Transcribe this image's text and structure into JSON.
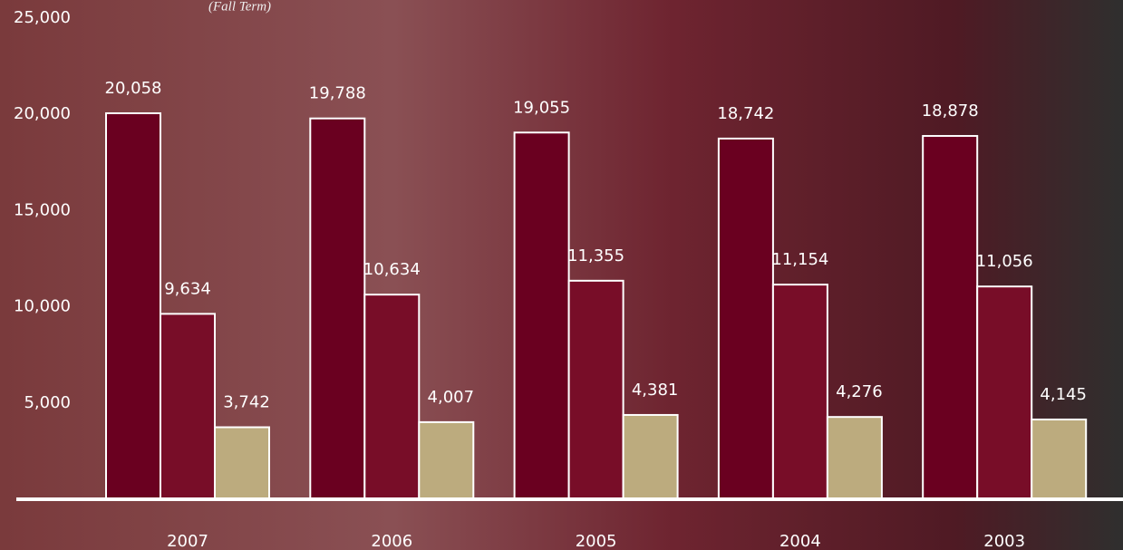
{
  "chart_data": {
    "type": "bar",
    "subtitle": "(Fall Term)",
    "categories": [
      "2007",
      "2006",
      "2005",
      "2004",
      "2003"
    ],
    "series": [
      {
        "color": "#6a0020",
        "values": [
          20058,
          19788,
          19055,
          18742,
          18878
        ],
        "value_labels": [
          "20,058",
          "19,788",
          "19,055",
          "18,742",
          "18,878"
        ]
      },
      {
        "color": "#780d28",
        "values": [
          9634,
          10634,
          11355,
          11154,
          11056
        ],
        "value_labels": [
          "9,634",
          "10,634",
          "11,355",
          "11,154",
          "11,056"
        ]
      },
      {
        "color": "#bcab7e",
        "values": [
          3742,
          4007,
          4381,
          4276,
          4145
        ],
        "value_labels": [
          "3,742",
          "4,007",
          "4,381",
          "4,276",
          "4,145"
        ]
      }
    ],
    "ylim": [
      0,
      25000
    ],
    "yticks": [
      {
        "value": 5000,
        "label": "5,000"
      },
      {
        "value": 10000,
        "label": "10,000"
      },
      {
        "value": 15000,
        "label": "15,000"
      },
      {
        "value": 20000,
        "label": "20,000"
      },
      {
        "value": 25000,
        "label": "25,000"
      }
    ]
  }
}
